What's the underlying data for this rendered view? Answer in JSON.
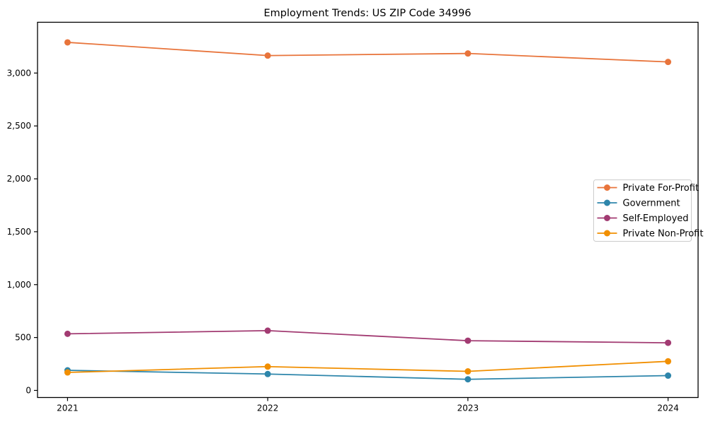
{
  "chart_data": {
    "type": "line",
    "title": "Employment Trends: US ZIP Code 34996",
    "x": [
      "2021",
      "2022",
      "2023",
      "2024"
    ],
    "series": [
      {
        "name": "Private For-Profit",
        "color": "#E8743B",
        "values": [
          3290,
          3165,
          3185,
          3105
        ]
      },
      {
        "name": "Government",
        "color": "#2E86AB",
        "values": [
          190,
          155,
          105,
          140
        ]
      },
      {
        "name": "Self-Employed",
        "color": "#A23B72",
        "values": [
          535,
          565,
          470,
          450
        ]
      },
      {
        "name": "Private Non-Profit",
        "color": "#F18F01",
        "values": [
          170,
          225,
          180,
          275
        ]
      }
    ],
    "yticks": [
      0,
      500,
      1000,
      1500,
      2000,
      2500,
      3000
    ],
    "ytick_labels": [
      "0",
      "500",
      "1,000",
      "1,500",
      "2,000",
      "2,500",
      "3,000"
    ],
    "ylim": [
      -67,
      3480
    ],
    "xlabel": "",
    "ylabel": "",
    "grid": false,
    "legend_position": "center-right",
    "marker": "circle",
    "frame_color": "#000000",
    "legend_border_color": "#cccccc",
    "background_color": "#ffffff"
  }
}
